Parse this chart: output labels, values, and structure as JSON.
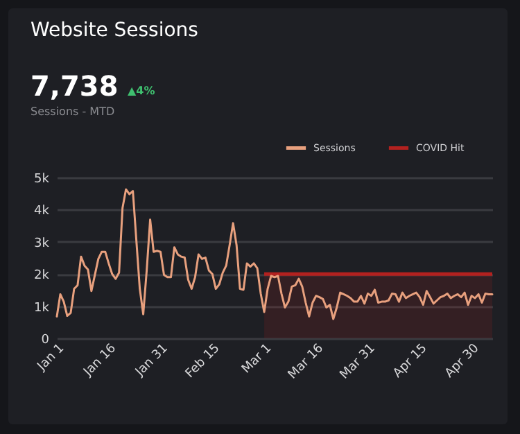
{
  "chart_data": {
    "type": "line",
    "title": "Website Sessions",
    "annotations": [
      "7,738",
      "▲4%",
      "Sessions - MTD"
    ],
    "xlim": [
      "--01-01",
      "--05-06"
    ],
    "xticks": [
      {
        "value": "--01-01",
        "label": "Jan 1"
      },
      {
        "value": "--01-16",
        "label": "Jan 16"
      },
      {
        "value": "--01-31",
        "label": "Jan 31"
      },
      {
        "value": "--02-15",
        "label": "Feb 15"
      },
      {
        "value": "--03-01",
        "label": "Mar 1"
      },
      {
        "value": "--03-16",
        "label": "Mar 16"
      },
      {
        "value": "--03-31",
        "label": "Mar 31"
      },
      {
        "value": "--04-15",
        "label": "Apr 15"
      },
      {
        "value": "--04-30",
        "label": "Apr 30"
      }
    ],
    "ylim": [
      0,
      5000
    ],
    "yticks": [
      0,
      {
        "value": 1000,
        "label": "1k"
      },
      {
        "value": 2000,
        "label": "2k"
      },
      {
        "value": 3000,
        "label": "3k"
      },
      {
        "value": 4000,
        "label": "4k"
      },
      {
        "value": 5000,
        "label": "5k"
      }
    ],
    "grid": "y",
    "legend": "top right",
    "x": [
      "--01-01",
      "--01-02",
      "--01-03",
      "--01-04",
      "--01-05",
      "--01-06",
      "--01-07",
      "--01-08",
      "--01-09",
      "--01-10",
      "--01-11",
      "--01-12",
      "--01-13",
      "--01-14",
      "--01-15",
      "--01-16",
      "--01-17",
      "--01-18",
      "--01-19",
      "--01-20",
      "--01-21",
      "--01-22",
      "--01-23",
      "--01-24",
      "--01-25",
      "--01-26",
      "--01-27",
      "--01-28",
      "--01-29",
      "--01-30",
      "--01-31",
      "--02-01",
      "--02-02",
      "--02-03",
      "--02-04",
      "--02-05",
      "--02-06",
      "--02-07",
      "--02-08",
      "--02-09",
      "--02-10",
      "--02-11",
      "--02-12",
      "--02-13",
      "--02-14",
      "--02-15",
      "--02-16",
      "--02-17",
      "--02-18",
      "--02-19",
      "--02-20",
      "--02-21",
      "--02-22",
      "--02-23",
      "--02-24",
      "--02-25",
      "--02-26",
      "--02-27",
      "--02-28",
      "--02-29",
      "--03-01",
      "--03-02",
      "--03-03",
      "--03-04",
      "--03-05",
      "--03-06",
      "--03-07",
      "--03-08",
      "--03-09",
      "--03-10",
      "--03-11",
      "--03-12",
      "--03-13",
      "--03-14",
      "--03-15",
      "--03-16",
      "--03-17",
      "--03-18",
      "--03-19",
      "--03-20",
      "--03-21",
      "--03-22",
      "--03-23",
      "--03-24",
      "--03-25",
      "--03-26",
      "--03-27",
      "--03-28",
      "--03-29",
      "--03-30",
      "--03-31",
      "--04-01",
      "--04-02",
      "--04-03",
      "--04-04",
      "--04-05",
      "--04-06",
      "--04-07",
      "--04-08",
      "--04-09",
      "--04-10",
      "--04-11",
      "--04-12",
      "--04-13",
      "--04-14",
      "--04-15",
      "--04-16",
      "--04-17",
      "--04-18",
      "--04-19",
      "--04-20",
      "--04-21",
      "--04-22",
      "--04-23",
      "--04-24",
      "--04-25",
      "--04-26",
      "--04-27",
      "--04-28",
      "--04-29",
      "--04-30",
      "--05-01",
      "--05-02",
      "--05-03",
      "--05-04",
      "--05-05",
      "--05-06"
    ],
    "series": [
      {
        "name": "Sessions",
        "type": "line",
        "color": "#e8a07e",
        "values": [
          680,
          1370,
          1140,
          700,
          790,
          1540,
          1650,
          2540,
          2260,
          2140,
          1470,
          1970,
          2470,
          2690,
          2690,
          2330,
          2000,
          1850,
          2040,
          4050,
          4630,
          4480,
          4580,
          3050,
          1540,
          750,
          2110,
          3690,
          2690,
          2720,
          2690,
          1970,
          1900,
          1900,
          2830,
          2610,
          2540,
          2510,
          1820,
          1540,
          1900,
          2610,
          2470,
          2510,
          2110,
          2000,
          1540,
          1680,
          2040,
          2260,
          2900,
          3580,
          2900,
          1540,
          1510,
          2330,
          2230,
          2330,
          2180,
          1390,
          820,
          1540,
          1940,
          1900,
          1940,
          1390,
          960,
          1140,
          1610,
          1650,
          1850,
          1610,
          1110,
          680,
          1110,
          1320,
          1280,
          1220,
          960,
          1040,
          600,
          960,
          1420,
          1370,
          1320,
          1250,
          1140,
          1140,
          1320,
          1080,
          1390,
          1320,
          1510,
          1110,
          1140,
          1140,
          1180,
          1390,
          1370,
          1140,
          1420,
          1250,
          1320,
          1370,
          1420,
          1280,
          1040,
          1470,
          1280,
          1080,
          1180,
          1280,
          1320,
          1390,
          1250,
          1320,
          1370,
          1280,
          1420,
          1040,
          1320,
          1250,
          1370,
          1110,
          1390,
          1370,
          1370
        ]
      },
      {
        "name": "COVID Hit",
        "type": "area",
        "color": "#b3211f",
        "x": [
          "--03-01",
          "--05-06"
        ],
        "values": [
          2000,
          2000
        ]
      }
    ]
  }
}
